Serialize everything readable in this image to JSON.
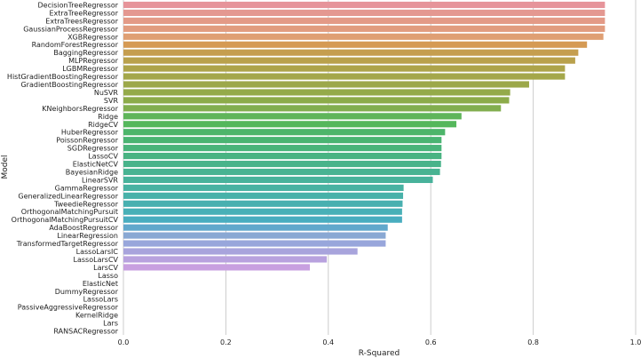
{
  "chart_data": {
    "type": "bar",
    "orientation": "horizontal",
    "xlabel": "R-Squared",
    "ylabel": "Model",
    "xlim": [
      0,
      1.0
    ],
    "xticks": [
      "0.0",
      "0.2",
      "0.4",
      "0.6",
      "0.8",
      "1.0"
    ],
    "grid": "vertical",
    "categories": [
      "DecisionTreeRegressor",
      "ExtraTreeRegressor",
      "ExtraTreesRegressor",
      "GaussianProcessRegressor",
      "XGBRegressor",
      "RandomForestRegressor",
      "BaggingRegressor",
      "MLPRegressor",
      "LGBMRegressor",
      "HistGradientBoostingRegressor",
      "GradientBoostingRegressor",
      "NuSVR",
      "SVR",
      "KNeighborsRegressor",
      "Ridge",
      "RidgeCV",
      "HuberRegressor",
      "PoissonRegressor",
      "SGDRegressor",
      "LassoCV",
      "ElasticNetCV",
      "BayesianRidge",
      "LinearSVR",
      "GammaRegressor",
      "GeneralizedLinearRegressor",
      "TweedieRegressor",
      "OrthogonalMatchingPursuit",
      "OrthogonalMatchingPursuitCV",
      "AdaBoostRegressor",
      "LinearRegression",
      "TransformedTargetRegressor",
      "LassoLarsIC",
      "LassoLarsCV",
      "LarsCV",
      "Lasso",
      "ElasticNet",
      "DummyRegressor",
      "LassoLars",
      "PassiveAggressiveRegressor",
      "KernelRidge",
      "Lars",
      "RANSACRegressor"
    ],
    "values": [
      0.94,
      0.94,
      0.94,
      0.94,
      0.937,
      0.905,
      0.888,
      0.882,
      0.862,
      0.862,
      0.792,
      0.755,
      0.753,
      0.737,
      0.66,
      0.65,
      0.628,
      0.621,
      0.621,
      0.621,
      0.62,
      0.618,
      0.604,
      0.547,
      0.546,
      0.545,
      0.544,
      0.544,
      0.516,
      0.512,
      0.512,
      0.457,
      0.397,
      0.364,
      0,
      0,
      0,
      0,
      0,
      0,
      0,
      0
    ],
    "colors": [
      "#e6949a",
      "#e49891",
      "#e39a87",
      "#e19c7f",
      "#df9f73",
      "#d59a54",
      "#c59e4f",
      "#b9a14c",
      "#ada44a",
      "#a4a74a",
      "#9ca84a",
      "#94aa4a",
      "#8cab4a",
      "#82ae4f",
      "#5fb55a",
      "#55b75c",
      "#4db56a",
      "#4ab472",
      "#49b47a",
      "#49b382",
      "#48b38a",
      "#48b392",
      "#48b29b",
      "#48b2a2",
      "#48b1a9",
      "#48b0b0",
      "#48b0b7",
      "#49adbf",
      "#61a8cc",
      "#89a8d3",
      "#98a6db",
      "#a8a4dc",
      "#b8a2de",
      "#c8a0e0",
      "#d49ee2",
      "#dc9ce2",
      "#e29ae0",
      "#e698db",
      "#e896d4",
      "#e995cb",
      "#e894c2",
      "#e794b9"
    ]
  }
}
